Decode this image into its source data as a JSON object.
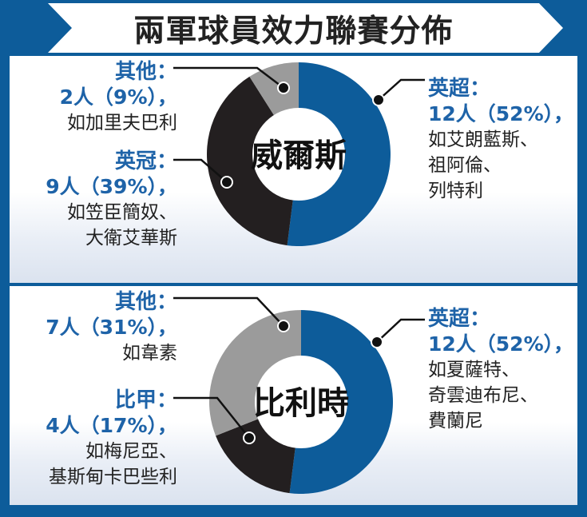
{
  "title": "兩軍球員效力聯賽分佈",
  "colors": {
    "blue": "#0d5c9a",
    "black": "#231f20",
    "gray": "#9b9b9b",
    "header_bg": "#0d5c9a"
  },
  "chart_data": [
    {
      "type": "pie",
      "title": "威爾斯",
      "slices": [
        {
          "category": "英超",
          "label": "英超：",
          "count_label": "12人（52%），",
          "value": 52,
          "count": 12,
          "examples": [
            "如艾朗藍斯、",
            "祖阿倫、",
            "列特利"
          ],
          "color": "#0d5c9a"
        },
        {
          "category": "英冠",
          "label": "英冠：",
          "count_label": "9人（39%），",
          "value": 39,
          "count": 9,
          "examples": [
            "如笠臣簡奴、",
            "大衛艾華斯"
          ],
          "color": "#231f20"
        },
        {
          "category": "其他",
          "label": "其他：",
          "count_label": "2人（9%），",
          "value": 9,
          "count": 2,
          "examples": [
            "如加里夫巴利"
          ],
          "color": "#9b9b9b"
        }
      ]
    },
    {
      "type": "pie",
      "title": "比利時",
      "slices": [
        {
          "category": "英超",
          "label": "英超：",
          "count_label": "12人（52%），",
          "value": 52,
          "count": 12,
          "examples": [
            "如夏薩特、",
            "奇雲迪布尼、",
            "費蘭尼"
          ],
          "color": "#0d5c9a"
        },
        {
          "category": "比甲",
          "label": "比甲：",
          "count_label": "4人（17%），",
          "value": 17,
          "count": 4,
          "examples": [
            "如梅尼亞、",
            "基斯甸卡巴些利"
          ],
          "color": "#231f20"
        },
        {
          "category": "其他",
          "label": "其他：",
          "count_label": "7人（31%），",
          "value": 31,
          "count": 7,
          "examples": [
            "如韋素"
          ],
          "color": "#9b9b9b"
        }
      ]
    }
  ]
}
